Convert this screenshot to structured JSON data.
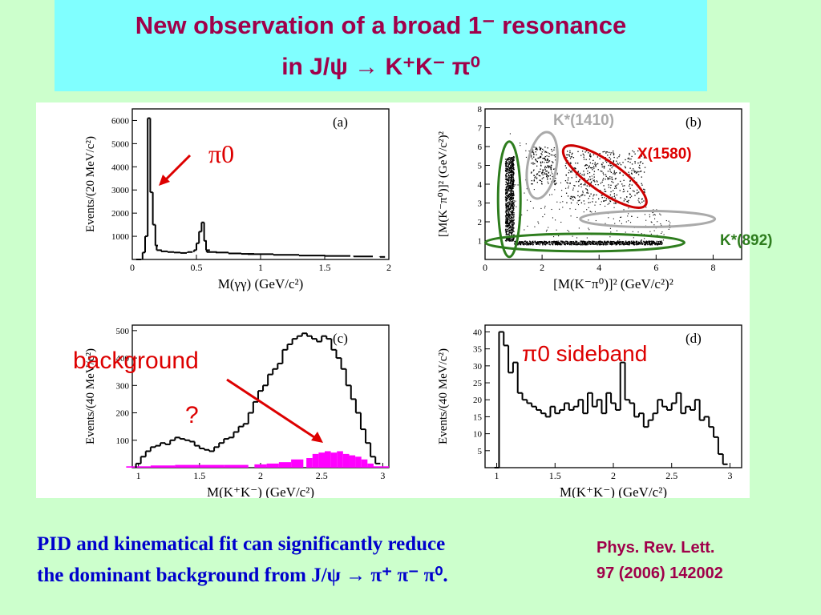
{
  "title": {
    "line1": "New observation of a broad  1⁻ resonance",
    "line2": "in J/ψ  →  K⁺K⁻ π⁰"
  },
  "footer": {
    "line1": "PID and kinematical fit can significantly reduce",
    "line2": "the dominant background from J/ψ  →  π⁺ π⁻ π⁰."
  },
  "reference": {
    "line1": "Phys. Rev. Lett.",
    "line2": "97 (2006) 142002"
  },
  "annotations": {
    "pi0_arrow": "π0",
    "background": "background",
    "question": "?",
    "sideband": "π0 sideband",
    "k1410": "K*(1410)",
    "x1580": "X(1580)",
    "k892": "K*(892)"
  },
  "colors": {
    "title": "#a0004a",
    "footer": "#0000cc",
    "red": "#dd0000",
    "green": "#2e7d1e",
    "gray": "#aaaaaa",
    "magenta": "#ff00ff"
  },
  "chart_data": [
    {
      "type": "bar",
      "panel_label": "(a)",
      "xlabel": "M(γγ) (GeV/c²)",
      "ylabel": "Events/(20 MeV/c²)",
      "xlim": [
        0,
        2
      ],
      "ylim": [
        0,
        6500
      ],
      "x_ticks": [
        "0",
        "0.5",
        "1",
        "1.5",
        "2"
      ],
      "y_ticks": [
        "1000",
        "2000",
        "3000",
        "4000",
        "5000",
        "6000"
      ],
      "x": [
        0.05,
        0.09,
        0.11,
        0.13,
        0.15,
        0.17,
        0.19,
        0.21,
        0.25,
        0.3,
        0.35,
        0.4,
        0.45,
        0.49,
        0.51,
        0.53,
        0.55,
        0.57,
        0.59,
        0.62,
        0.7,
        0.8,
        0.9,
        1.0,
        1.2,
        1.4,
        1.6,
        1.8,
        1.95
      ],
      "values": [
        0,
        300,
        1000,
        6100,
        2900,
        1500,
        600,
        400,
        350,
        320,
        300,
        280,
        320,
        400,
        700,
        1200,
        1600,
        800,
        400,
        320,
        300,
        260,
        240,
        230,
        200,
        170,
        150,
        130,
        110
      ]
    },
    {
      "type": "scatter",
      "panel_label": "(b)",
      "xlabel": "[M(K⁻π⁰)]² (GeV/c²)²",
      "ylabel": "[M(K⁻π⁰)]² (GeV/c²)²",
      "xlim": [
        0,
        9
      ],
      "ylim": [
        0,
        8
      ],
      "x_ticks": [
        "0",
        "2",
        "4",
        "6",
        "8"
      ],
      "y_ticks": [
        "1",
        "2",
        "3",
        "4",
        "5",
        "6",
        "7",
        "8"
      ],
      "bands": [
        {
          "name": "K*(892) vertical",
          "x": [
            0.7,
            1.0
          ],
          "y": [
            1.0,
            5.5
          ]
        },
        {
          "name": "K*(892) horizontal",
          "x": [
            1.0,
            6.2
          ],
          "y": [
            0.8,
            1.0
          ]
        },
        {
          "name": "K*(1410)",
          "x": [
            1.6,
            2.5
          ],
          "y": [
            4.0,
            6.0
          ]
        },
        {
          "name": "X(1580)",
          "x": [
            2.8,
            5.6
          ],
          "y": [
            3.0,
            5.8
          ]
        }
      ]
    },
    {
      "type": "bar",
      "panel_label": "(c)",
      "xlabel": "M(K⁺K⁻) (GeV/c²)",
      "ylabel": "Events/(40 MeV/c²)",
      "xlim": [
        0.95,
        3.05
      ],
      "ylim": [
        0,
        520
      ],
      "x_ticks": [
        "1",
        "1.5",
        "2",
        "2.5",
        "3"
      ],
      "y_ticks": [
        "100",
        "200",
        "300",
        "400",
        "500"
      ],
      "series": [
        {
          "name": "data",
          "x": [
            1.0,
            1.04,
            1.08,
            1.12,
            1.16,
            1.2,
            1.24,
            1.28,
            1.32,
            1.36,
            1.4,
            1.44,
            1.48,
            1.52,
            1.56,
            1.6,
            1.64,
            1.68,
            1.72,
            1.76,
            1.8,
            1.84,
            1.88,
            1.92,
            1.96,
            2.0,
            2.04,
            2.08,
            2.12,
            2.16,
            2.2,
            2.24,
            2.28,
            2.32,
            2.36,
            2.4,
            2.44,
            2.48,
            2.52,
            2.56,
            2.6,
            2.64,
            2.68,
            2.72,
            2.76,
            2.8,
            2.84,
            2.88,
            2.92,
            2.96
          ],
          "values": [
            15,
            40,
            60,
            75,
            80,
            90,
            85,
            100,
            110,
            105,
            100,
            95,
            80,
            70,
            65,
            60,
            75,
            90,
            105,
            110,
            130,
            150,
            160,
            200,
            240,
            280,
            300,
            340,
            360,
            380,
            430,
            450,
            470,
            480,
            490,
            480,
            470,
            460,
            480,
            470,
            430,
            400,
            360,
            300,
            250,
            200,
            140,
            90,
            40,
            15
          ]
        },
        {
          "name": "background",
          "x": [
            1.0,
            1.2,
            1.4,
            1.6,
            1.8,
            2.0,
            2.1,
            2.2,
            2.3,
            2.4,
            2.45,
            2.5,
            2.55,
            2.6,
            2.65,
            2.7,
            2.75,
            2.8,
            2.85,
            2.9,
            2.95
          ],
          "values": [
            5,
            8,
            10,
            10,
            10,
            12,
            15,
            20,
            30,
            35,
            50,
            55,
            60,
            55,
            60,
            50,
            45,
            40,
            30,
            15,
            5
          ]
        }
      ]
    },
    {
      "type": "bar",
      "panel_label": "(d)",
      "xlabel": "M(K⁺K⁻) (GeV/c²)",
      "ylabel": "Events/(40 MeV/c²)",
      "xlim": [
        0.9,
        3.1
      ],
      "ylim": [
        0,
        42
      ],
      "x_ticks": [
        "1",
        "1.5",
        "2",
        "2.5",
        "3"
      ],
      "y_ticks": [
        "5",
        "10",
        "15",
        "20",
        "25",
        "30",
        "35",
        "40"
      ],
      "x": [
        1.0,
        1.04,
        1.08,
        1.12,
        1.16,
        1.2,
        1.24,
        1.28,
        1.32,
        1.36,
        1.4,
        1.44,
        1.48,
        1.52,
        1.56,
        1.6,
        1.64,
        1.68,
        1.72,
        1.76,
        1.8,
        1.84,
        1.88,
        1.92,
        1.96,
        2.0,
        2.04,
        2.08,
        2.12,
        2.16,
        2.2,
        2.24,
        2.28,
        2.32,
        2.36,
        2.4,
        2.44,
        2.48,
        2.52,
        2.56,
        2.6,
        2.64,
        2.68,
        2.72,
        2.76,
        2.8,
        2.84,
        2.88,
        2.92,
        2.96
      ],
      "values": [
        0,
        40,
        36,
        28,
        31,
        22,
        20,
        19,
        18,
        17,
        16,
        15,
        18,
        16,
        17,
        19,
        17,
        18,
        20,
        16,
        22,
        18,
        20,
        16,
        22,
        19,
        17,
        31,
        20,
        19,
        15,
        16,
        12,
        14,
        16,
        20,
        18,
        17,
        19,
        22,
        16,
        18,
        17,
        20,
        14,
        15,
        12,
        9,
        4,
        1
      ]
    }
  ]
}
